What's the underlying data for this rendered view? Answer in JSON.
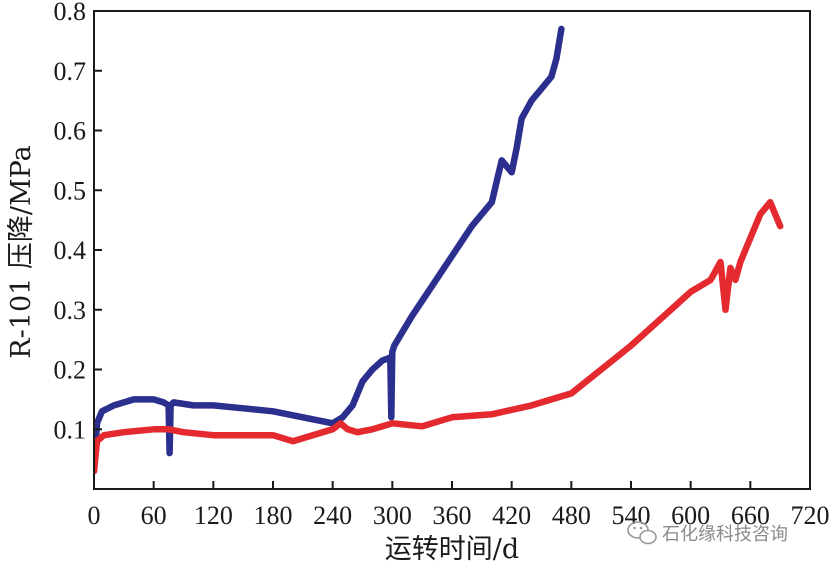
{
  "chart_data": {
    "type": "line",
    "title": "",
    "xlabel": "运转时间/d",
    "ylabel": "R-101 压降/MPa",
    "xlim": [
      0,
      720
    ],
    "ylim": [
      0,
      0.8
    ],
    "x_ticks": [
      0,
      60,
      120,
      180,
      240,
      300,
      360,
      420,
      480,
      540,
      600,
      660,
      720
    ],
    "x_tick_labels": [
      "0",
      "60",
      "120",
      "180",
      "240",
      "300",
      "360",
      "420",
      "480",
      "540",
      "600",
      "660",
      "720"
    ],
    "y_ticks": [
      0.1,
      0.2,
      0.3,
      0.4,
      0.5,
      0.6,
      0.7,
      0.8
    ],
    "y_tick_labels": [
      "0.1",
      "0.2",
      "0.3",
      "0.4",
      "0.5",
      "0.6",
      "0.7",
      "0.8"
    ],
    "grid": false,
    "legend": "none",
    "series": [
      {
        "color": "#2b2f8e",
        "x": [
          0,
          3,
          8,
          20,
          40,
          60,
          70,
          75,
          76,
          77,
          80,
          100,
          120,
          150,
          180,
          210,
          240,
          250,
          260,
          270,
          280,
          290,
          298,
          299,
          300,
          302,
          320,
          340,
          360,
          380,
          400,
          410,
          420,
          425,
          430,
          440,
          450,
          460,
          465,
          470
        ],
        "y": [
          0.03,
          0.11,
          0.13,
          0.14,
          0.15,
          0.15,
          0.145,
          0.14,
          0.06,
          0.14,
          0.145,
          0.14,
          0.14,
          0.135,
          0.13,
          0.12,
          0.11,
          0.12,
          0.14,
          0.18,
          0.2,
          0.215,
          0.22,
          0.12,
          0.23,
          0.24,
          0.29,
          0.34,
          0.39,
          0.44,
          0.48,
          0.55,
          0.53,
          0.57,
          0.62,
          0.65,
          0.67,
          0.69,
          0.72,
          0.77
        ]
      },
      {
        "color": "#e42a2f",
        "x": [
          0,
          3,
          10,
          30,
          60,
          75,
          90,
          120,
          150,
          180,
          200,
          240,
          248,
          255,
          265,
          280,
          300,
          330,
          360,
          400,
          440,
          480,
          510,
          540,
          560,
          580,
          600,
          620,
          630,
          635,
          640,
          645,
          650,
          660,
          670,
          680,
          690
        ],
        "y": [
          0.03,
          0.08,
          0.09,
          0.095,
          0.1,
          0.1,
          0.095,
          0.09,
          0.09,
          0.09,
          0.08,
          0.1,
          0.11,
          0.1,
          0.095,
          0.1,
          0.11,
          0.105,
          0.12,
          0.125,
          0.14,
          0.16,
          0.2,
          0.24,
          0.27,
          0.3,
          0.33,
          0.35,
          0.38,
          0.3,
          0.37,
          0.35,
          0.38,
          0.42,
          0.46,
          0.48,
          0.44
        ]
      }
    ]
  },
  "watermark": {
    "text": "石化缘科技咨询",
    "icon": "wechat-icon"
  }
}
